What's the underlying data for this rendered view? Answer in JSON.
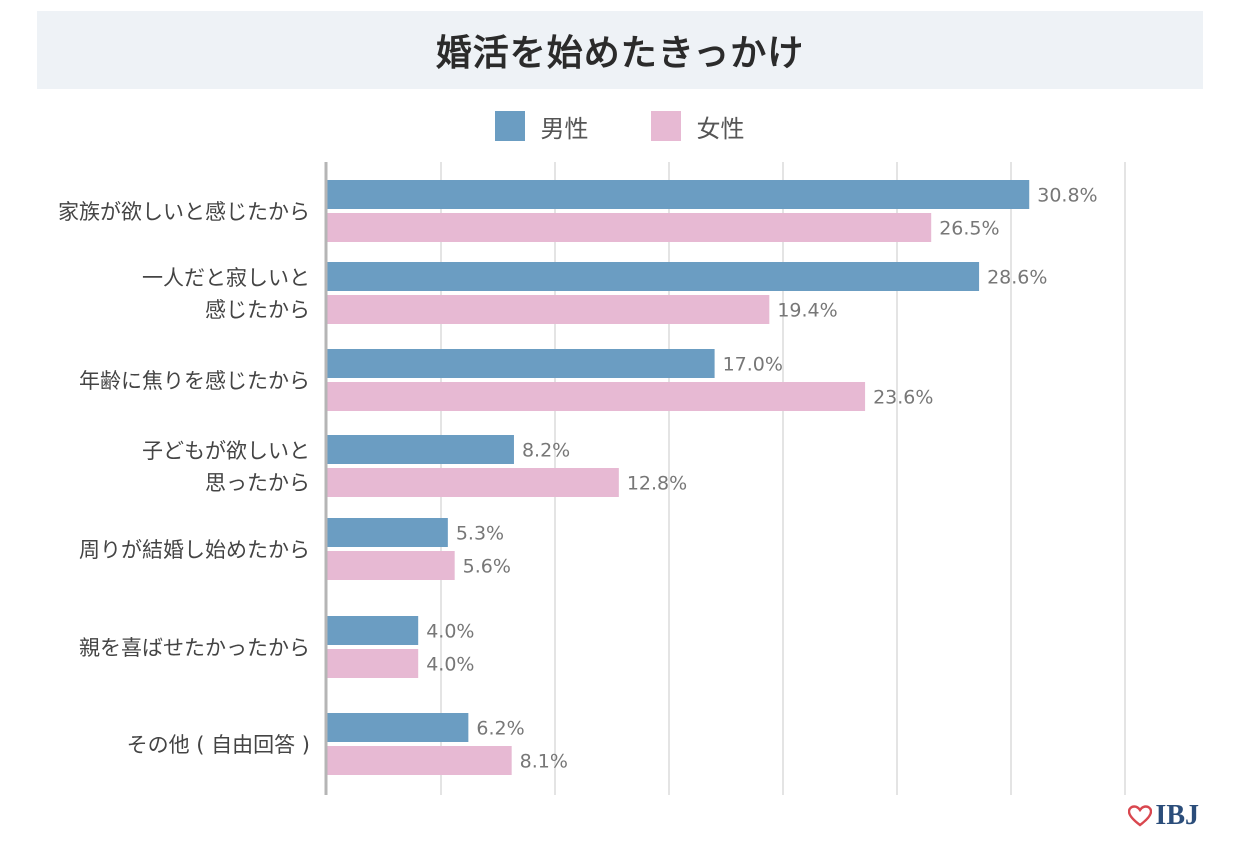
{
  "title": "婚活を始めたきっかけ",
  "legend": {
    "male": "男性",
    "female": "女性"
  },
  "colors": {
    "male": "#6b9dc2",
    "female": "#e7b9d3",
    "grid": "#dcdcdc",
    "axis": "#b5b5b5",
    "label": "#444444",
    "value": "#777777"
  },
  "logo": {
    "text": "IBJ",
    "icon": "heart-icon"
  },
  "chart_data": {
    "type": "bar",
    "orientation": "horizontal",
    "title": "婚活を始めたきっかけ",
    "categories": [
      [
        "家族が欲しいと感じたから"
      ],
      [
        "一人だと寂しいと",
        "感じたから"
      ],
      [
        "年齢に焦りを感じたから"
      ],
      [
        "子どもが欲しいと",
        "思ったから"
      ],
      [
        "周りが結婚し始めたから"
      ],
      [
        "親を喜ばせたかったから"
      ],
      [
        "その他 ( 自由回答 )"
      ]
    ],
    "series": [
      {
        "name": "男性",
        "values": [
          30.8,
          28.6,
          17.0,
          8.2,
          5.3,
          4.0,
          6.2
        ],
        "labels": [
          "30.8%",
          "28.6%",
          "17.0%",
          "8.2%",
          "5.3%",
          "4.0%",
          "6.2%"
        ]
      },
      {
        "name": "女性",
        "values": [
          26.5,
          19.4,
          23.6,
          12.8,
          5.6,
          4.0,
          8.1
        ],
        "labels": [
          "26.5%",
          "19.4%",
          "23.6%",
          "12.8%",
          "5.6%",
          "4.0%",
          "8.1%"
        ]
      }
    ],
    "xlim": [
      0,
      35
    ],
    "grid_step": 5,
    "grid": true,
    "legend_position": "top"
  }
}
